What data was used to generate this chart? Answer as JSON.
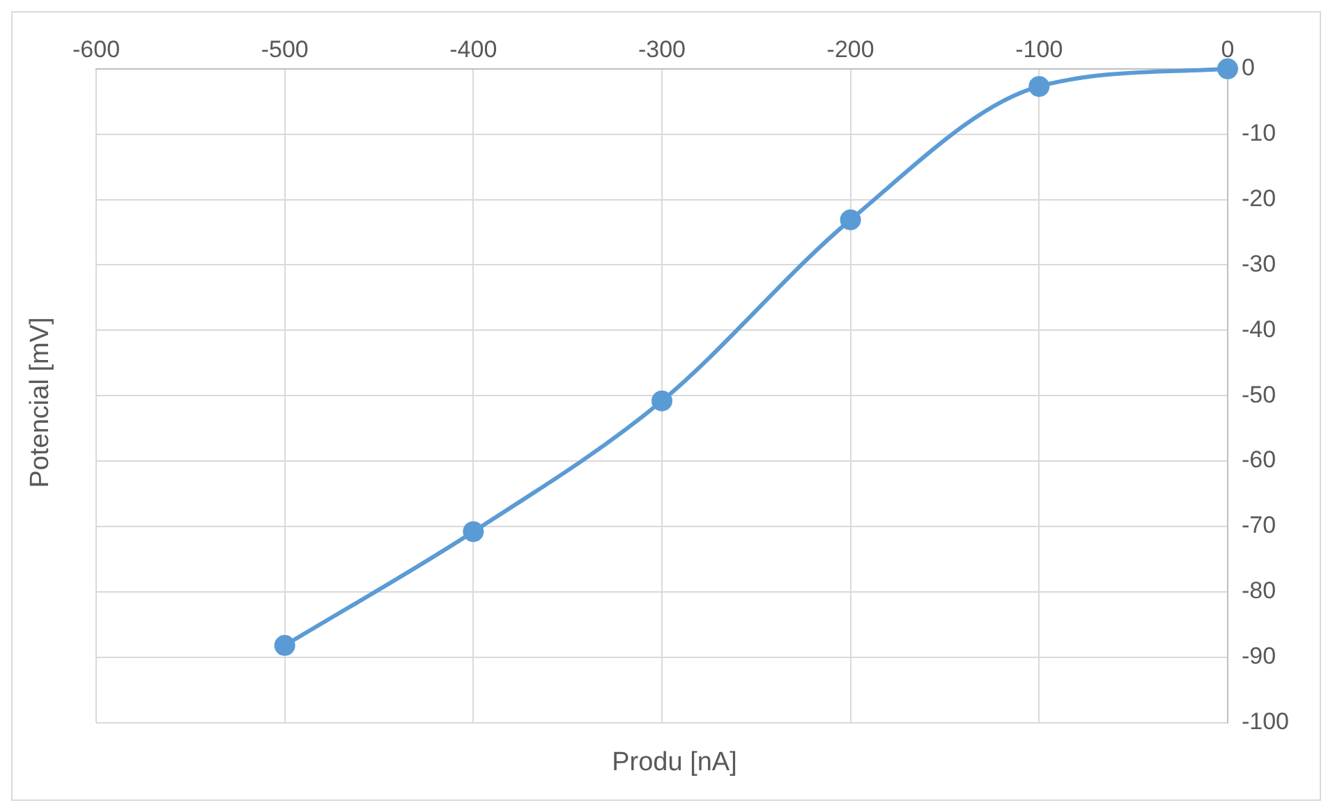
{
  "chart_data": {
    "type": "line",
    "xlabel": "Produ [nA]",
    "ylabel": "Potencial [mV]",
    "x": [
      -500,
      -400,
      -300,
      -200,
      -100,
      0
    ],
    "series": [
      {
        "color": "#5b9bd5",
        "values": [
          -88.2,
          -70.8,
          -50.8,
          -23.1,
          -2.7,
          0
        ]
      }
    ],
    "xlim": [
      -600,
      0
    ],
    "xticks": [
      -600,
      -500,
      -400,
      -300,
      -200,
      -100,
      0
    ],
    "ylim": [
      -100,
      0
    ],
    "yticks": [
      -100,
      -90,
      -80,
      -70,
      -60,
      -50,
      -40,
      -30,
      -20,
      -10,
      0
    ],
    "grid": true,
    "legend": false,
    "marker": "circle",
    "line_style": "solid"
  }
}
